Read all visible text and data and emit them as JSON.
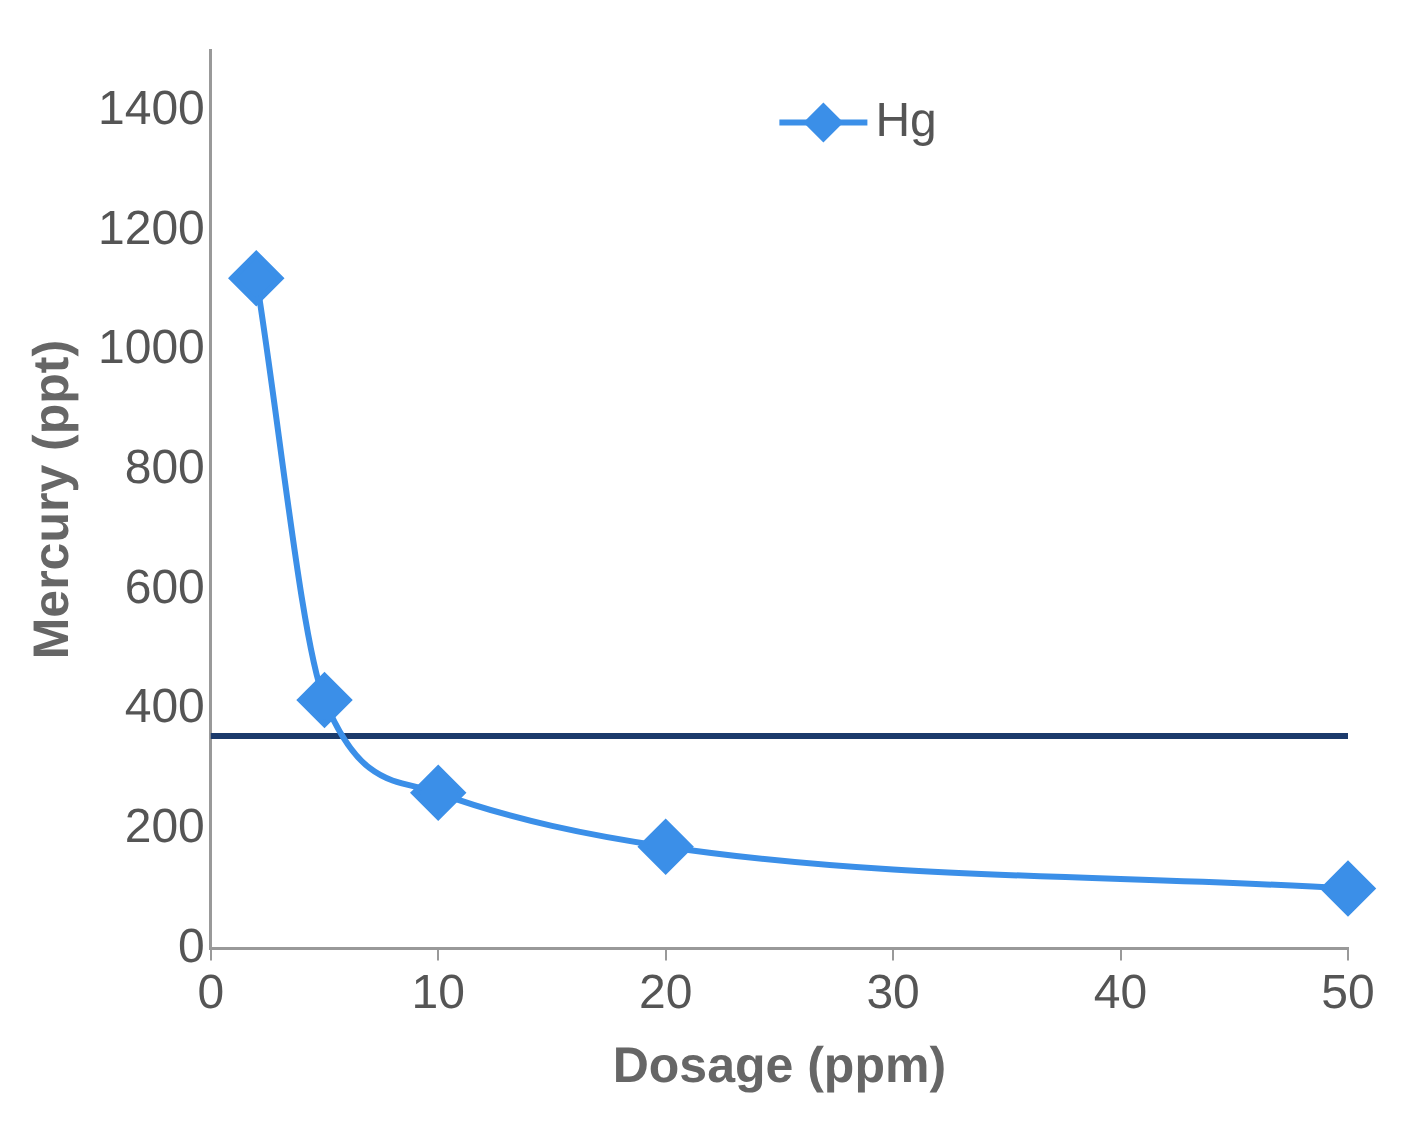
{
  "chart_data": {
    "type": "line",
    "xlabel": "Dosage (ppm)",
    "ylabel": "Mercury (ppt)",
    "x": [
      2,
      5,
      10,
      20,
      50
    ],
    "series": [
      {
        "name": "Hg",
        "color": "#3b8fe8",
        "values": [
          1120,
          415,
          260,
          170,
          100
        ]
      }
    ],
    "xlim": [
      0,
      50
    ],
    "xticks": [
      0,
      10,
      20,
      30,
      40,
      50
    ],
    "ylim": [
      0,
      1500
    ],
    "yticks": [
      0,
      200,
      400,
      600,
      800,
      1000,
      1200,
      1400
    ],
    "ref_lines": [
      {
        "axis": "y",
        "value": 355,
        "color": "#1b3a6b",
        "line_style": "solid"
      }
    ],
    "grid": false,
    "legend": "top right",
    "marker": "diamond",
    "line_style": "solid"
  }
}
